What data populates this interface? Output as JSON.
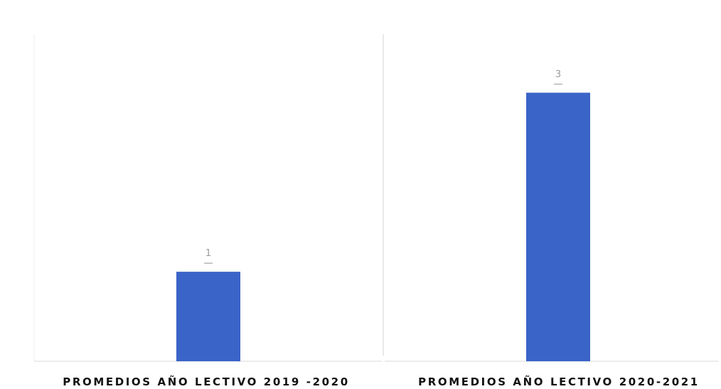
{
  "chart_data": {
    "type": "bar",
    "categories": [
      "PROMEDIOS AÑO LECTIVO 2019 -2020",
      "PROMEDIOS AÑO LECTIVO 2020-2021"
    ],
    "values": [
      1,
      3
    ],
    "data_labels": [
      "1",
      "3"
    ],
    "ylim": [
      0,
      3.4
    ],
    "title": "",
    "xlabel": "",
    "ylabel": "",
    "grid": false,
    "legend": "none",
    "colors": {
      "bar": "#3b64c8",
      "divider": "#e4e4e4",
      "baseline": "#d9d9d9",
      "label": "#111111",
      "data_label": "#9a9a9a"
    }
  }
}
